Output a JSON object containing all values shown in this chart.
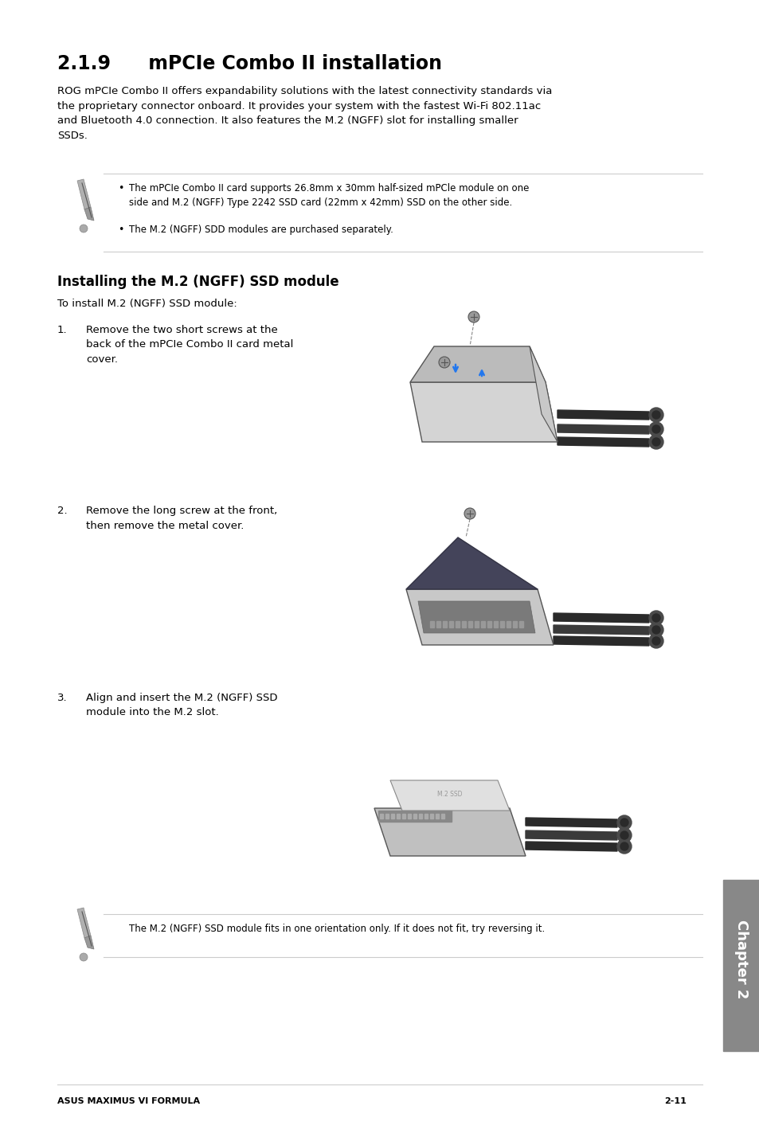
{
  "bg_color": "#ffffff",
  "title_section": "2.1.9  mPCIe Combo II installation",
  "title_fontsize": 17,
  "body_fontsize": 9.5,
  "small_fontsize": 8.5,
  "footer_left": "ASUS MAXIMUS VI FORMULA",
  "footer_right": "2-11",
  "chapter_label": "Chapter 2",
  "intro_text": "ROG mPCIe Combo II offers expandability solutions with the latest connectivity standards via\nthe proprietary connector onboard. It provides your system with the fastest Wi-Fi 802.11ac\nand Bluetooth 4.0 connection. It also features the M.2 (NGFF) slot for installing smaller\nSSDs.",
  "note1": "The mPCIe Combo II card supports 26.8mm x 30mm half-sized mPCle module on one\nside and M.2 (NGFF) Type 2242 SSD card (22mm x 42mm) SSD on the other side.",
  "note2": "The M.2 (NGFF) SDD modules are purchased separately.",
  "section_title": "Installing the M.2 (NGFF) SSD module",
  "section_intro": "To install M.2 (NGFF) SSD module:",
  "step1_text": "Remove the two short screws at the\nback of the mPCIe Combo II card metal\ncover.",
  "step2_text": "Remove the long screw at the front,\nthen remove the metal cover.",
  "step3_text": "Align and insert the M.2 (NGFF) SSD\nmodule into the M.2 slot.",
  "note_bottom": "The M.2 (NGFF) SSD module fits in one orientation only. If it does not fit, try reversing it.",
  "text_color": "#000000",
  "light_gray": "#cccccc",
  "chapter_bg": "#888888",
  "chapter_text": "#ffffff"
}
